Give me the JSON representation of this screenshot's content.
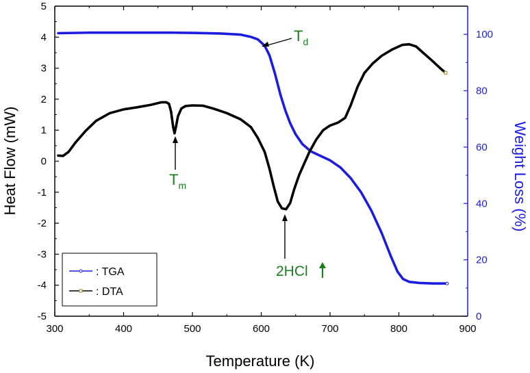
{
  "chart_data": {
    "type": "line",
    "xlabel": "Temperature (K)",
    "ylabel_left": "Heat Flow (mW)",
    "ylabel_right": "Weight Loss (%)",
    "xlim": [
      300,
      900
    ],
    "ylim_left": [
      -5,
      5
    ],
    "ylim_right": [
      0,
      110
    ],
    "x_ticks": [
      300,
      400,
      500,
      600,
      700,
      800,
      900
    ],
    "y_left_ticks": [
      -5,
      -4,
      -3,
      -2,
      -1,
      0,
      1,
      2,
      3,
      4,
      5
    ],
    "y_right_ticks": [
      0,
      20,
      40,
      60,
      80,
      100
    ],
    "series": [
      {
        "name": "TGA",
        "legend_label": ": TGA",
        "axis": "right",
        "color": "#1c1ce0",
        "points": [
          [
            305,
            100.4
          ],
          [
            350,
            100.6
          ],
          [
            400,
            100.6
          ],
          [
            450,
            100.6
          ],
          [
            470,
            100.6
          ],
          [
            500,
            100.5
          ],
          [
            540,
            100.3
          ],
          [
            570,
            99.9
          ],
          [
            585,
            99.1
          ],
          [
            595,
            98.2
          ],
          [
            605,
            96.0
          ],
          [
            612,
            92.5
          ],
          [
            620,
            86.0
          ],
          [
            628,
            78.5
          ],
          [
            635,
            73.0
          ],
          [
            642,
            68.5
          ],
          [
            650,
            64.5
          ],
          [
            660,
            61.0
          ],
          [
            672,
            58.5
          ],
          [
            685,
            57.0
          ],
          [
            700,
            55.3
          ],
          [
            715,
            52.8
          ],
          [
            730,
            49.0
          ],
          [
            745,
            44.0
          ],
          [
            760,
            37.5
          ],
          [
            775,
            29.5
          ],
          [
            788,
            21.5
          ],
          [
            798,
            15.8
          ],
          [
            806,
            13.2
          ],
          [
            815,
            12.2
          ],
          [
            830,
            11.8
          ],
          [
            850,
            11.6
          ],
          [
            870,
            11.6
          ]
        ]
      },
      {
        "name": "DTA",
        "legend_label": ": DTA",
        "axis": "left",
        "color": "#000000",
        "points": [
          [
            305,
            0.18
          ],
          [
            312,
            0.17
          ],
          [
            320,
            0.3
          ],
          [
            330,
            0.6
          ],
          [
            345,
            0.98
          ],
          [
            360,
            1.3
          ],
          [
            380,
            1.55
          ],
          [
            400,
            1.67
          ],
          [
            420,
            1.74
          ],
          [
            440,
            1.82
          ],
          [
            455,
            1.9
          ],
          [
            462,
            1.9
          ],
          [
            466,
            1.85
          ],
          [
            469,
            1.6
          ],
          [
            472,
            1.1
          ],
          [
            474,
            0.9
          ],
          [
            476,
            1.1
          ],
          [
            479,
            1.45
          ],
          [
            484,
            1.7
          ],
          [
            490,
            1.78
          ],
          [
            500,
            1.8
          ],
          [
            515,
            1.79
          ],
          [
            530,
            1.7
          ],
          [
            550,
            1.55
          ],
          [
            570,
            1.35
          ],
          [
            585,
            1.1
          ],
          [
            595,
            0.75
          ],
          [
            605,
            0.3
          ],
          [
            612,
            -0.25
          ],
          [
            618,
            -0.8
          ],
          [
            624,
            -1.3
          ],
          [
            630,
            -1.52
          ],
          [
            636,
            -1.55
          ],
          [
            642,
            -1.35
          ],
          [
            648,
            -0.9
          ],
          [
            655,
            -0.45
          ],
          [
            662,
            -0.1
          ],
          [
            670,
            0.3
          ],
          [
            680,
            0.7
          ],
          [
            690,
            1.0
          ],
          [
            700,
            1.15
          ],
          [
            712,
            1.25
          ],
          [
            722,
            1.4
          ],
          [
            730,
            1.8
          ],
          [
            740,
            2.4
          ],
          [
            750,
            2.85
          ],
          [
            762,
            3.15
          ],
          [
            775,
            3.4
          ],
          [
            790,
            3.6
          ],
          [
            805,
            3.75
          ],
          [
            815,
            3.77
          ],
          [
            825,
            3.7
          ],
          [
            835,
            3.5
          ],
          [
            848,
            3.25
          ],
          [
            860,
            3.0
          ],
          [
            868,
            2.85
          ]
        ]
      }
    ],
    "annotations": [
      {
        "text": "T",
        "sub": "d",
        "x": 600,
        "y_right": 98.2
      },
      {
        "text": "T",
        "sub": "m",
        "x": 474,
        "y_left": 0.9
      },
      {
        "text": "2HCl",
        "x": 636,
        "y_left": -1.55,
        "arrow": "up"
      }
    ],
    "legend": {
      "position": "bottom-left"
    }
  }
}
